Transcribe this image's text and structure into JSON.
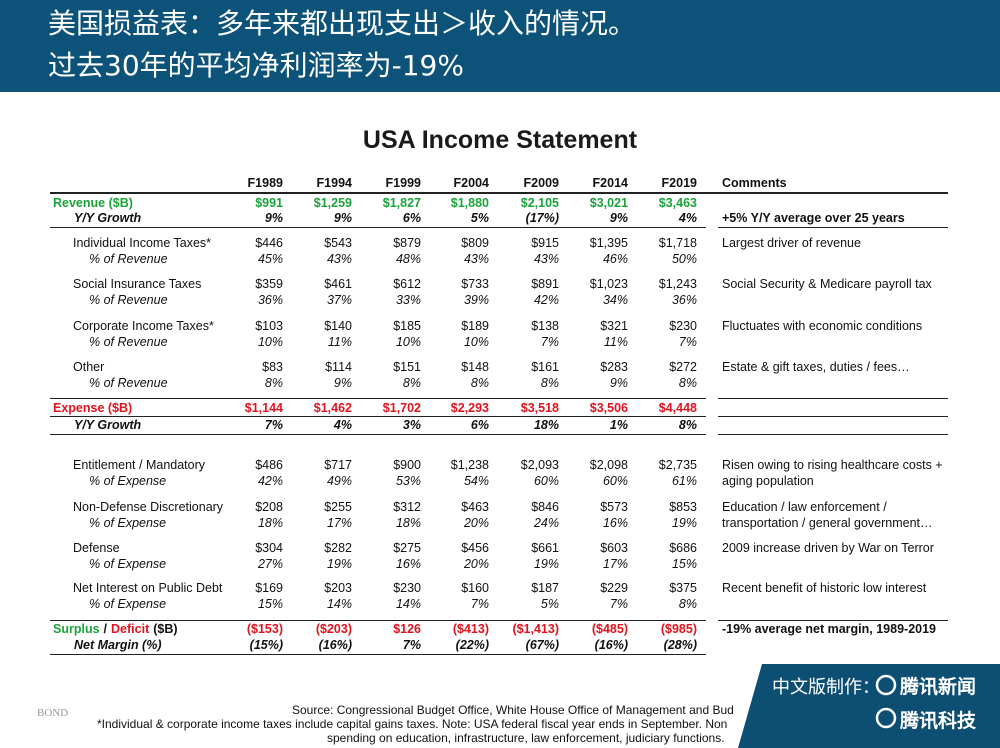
{
  "header": {
    "line1": "美国损益表：多年来都出现支出＞收入的情况。",
    "line2": "过去30年的平均净利润率为-19%"
  },
  "title": "USA Income Statement",
  "table": {
    "columns": [
      "F1989",
      "F1994",
      "F1999",
      "F2004",
      "F2009",
      "F2014",
      "F2019"
    ],
    "comments_header": "Comments",
    "revenue": {
      "label": "Revenue ($B)",
      "color": "#1aa33a",
      "values": [
        "$991",
        "$1,259",
        "$1,827",
        "$1,880",
        "$2,105",
        "$3,021",
        "$3,463"
      ],
      "growth": {
        "label": "Y/Y Growth",
        "values": [
          "9%",
          "9%",
          "6%",
          "5%",
          "(17%)",
          "9%",
          "4%"
        ],
        "comment": "+5% Y/Y average over 25 years"
      },
      "items": [
        {
          "label": "Individual Income Taxes*",
          "values": [
            "$446",
            "$543",
            "$879",
            "$809",
            "$915",
            "$1,395",
            "$1,718"
          ],
          "comment": [
            "Largest driver of revenue"
          ],
          "share": {
            "label": "% of Revenue",
            "values": [
              "45%",
              "43%",
              "48%",
              "43%",
              "43%",
              "46%",
              "50%"
            ]
          }
        },
        {
          "label": "Social Insurance Taxes",
          "values": [
            "$359",
            "$461",
            "$612",
            "$733",
            "$891",
            "$1,023",
            "$1,243"
          ],
          "comment": [
            "Social Security & Medicare payroll tax"
          ],
          "share": {
            "label": "% of Revenue",
            "values": [
              "36%",
              "37%",
              "33%",
              "39%",
              "42%",
              "34%",
              "36%"
            ]
          }
        },
        {
          "label": "Corporate Income Taxes*",
          "values": [
            "$103",
            "$140",
            "$185",
            "$189",
            "$138",
            "$321",
            "$230"
          ],
          "comment": [
            "Fluctuates with economic conditions"
          ],
          "share": {
            "label": "% of Revenue",
            "values": [
              "10%",
              "11%",
              "10%",
              "10%",
              "7%",
              "11%",
              "7%"
            ]
          }
        },
        {
          "label": "Other",
          "values": [
            "$83",
            "$114",
            "$151",
            "$148",
            "$161",
            "$283",
            "$272"
          ],
          "comment": [
            "Estate & gift taxes, duties / fees…"
          ],
          "share": {
            "label": "% of Revenue",
            "values": [
              "8%",
              "9%",
              "8%",
              "8%",
              "8%",
              "9%",
              "8%"
            ]
          }
        }
      ]
    },
    "expense": {
      "label": "Expense ($B)",
      "color": "#e0141e",
      "values": [
        "$1,144",
        "$1,462",
        "$1,702",
        "$2,293",
        "$3,518",
        "$3,506",
        "$4,448"
      ],
      "growth": {
        "label": "Y/Y Growth",
        "values": [
          "7%",
          "4%",
          "3%",
          "6%",
          "18%",
          "1%",
          "8%"
        ]
      },
      "items": [
        {
          "label": "Entitlement / Mandatory",
          "values": [
            "$486",
            "$717",
            "$900",
            "$1,238",
            "$2,093",
            "$2,098",
            "$2,735"
          ],
          "comment": [
            "Risen owing to rising healthcare costs +",
            "aging population"
          ],
          "share": {
            "label": "% of Expense",
            "values": [
              "42%",
              "49%",
              "53%",
              "54%",
              "60%",
              "60%",
              "61%"
            ]
          }
        },
        {
          "label": "Non-Defense Discretionary",
          "values": [
            "$208",
            "$255",
            "$312",
            "$463",
            "$846",
            "$573",
            "$853"
          ],
          "comment": [
            "Education / law enforcement /",
            "transportation / general government…"
          ],
          "share": {
            "label": "% of Expense",
            "values": [
              "18%",
              "17%",
              "18%",
              "20%",
              "24%",
              "16%",
              "19%"
            ]
          }
        },
        {
          "label": "Defense",
          "values": [
            "$304",
            "$282",
            "$275",
            "$456",
            "$661",
            "$603",
            "$686"
          ],
          "comment": [
            "2009 increase driven by War on Terror"
          ],
          "share": {
            "label": "% of Expense",
            "values": [
              "27%",
              "19%",
              "16%",
              "20%",
              "19%",
              "17%",
              "15%"
            ]
          }
        },
        {
          "label": "Net Interest on Public Debt",
          "values": [
            "$169",
            "$203",
            "$230",
            "$160",
            "$187",
            "$229",
            "$375"
          ],
          "comment": [
            "Recent benefit of historic low interest"
          ],
          "share": {
            "label": "% of Expense",
            "values": [
              "15%",
              "14%",
              "14%",
              "7%",
              "5%",
              "7%",
              "8%"
            ]
          }
        }
      ]
    },
    "surplus": {
      "label": [
        "Surplus",
        "/",
        "Deficit",
        "($B)"
      ],
      "values": [
        "($153)",
        "($203)",
        "$126",
        "($413)",
        "($1,413)",
        "($485)",
        "($985)"
      ],
      "comment": "-19% average net margin, 1989-2019",
      "margin": {
        "label": "Net Margin (%)",
        "values": [
          "(15%)",
          "(16%)",
          "7%",
          "(22%)",
          "(67%)",
          "(16%)",
          "(28%)"
        ]
      }
    }
  },
  "footer": {
    "source": "Source: Congressional Budget Office, White House Office of Management and Bud",
    "logo": "BOND",
    "note1": "*Individual & corporate income taxes include capital gains taxes.  Note: USA federal fiscal year ends in September. Non",
    "note2": "spending on education, infrastructure, law enforcement, judiciary functions."
  },
  "badge": {
    "line1": "中文版制作：",
    "brand1": "腾讯新闻",
    "brand2": "腾讯科技"
  }
}
